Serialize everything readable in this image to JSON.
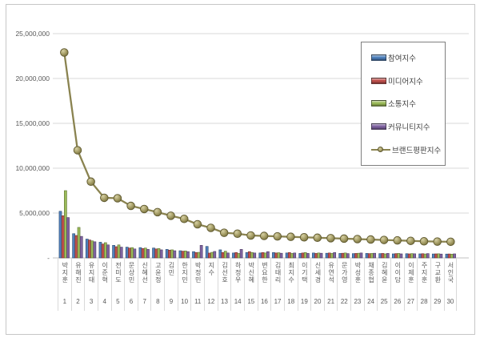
{
  "chart_data": {
    "type": "bar",
    "subtype": "grouped-bars-with-line-overlay",
    "title": "",
    "xlabel": "",
    "ylabel": "",
    "categories": [
      "박지훈",
      "유해진",
      "유지태",
      "이준혁",
      "전미도",
      "문상민",
      "신혜선",
      "고윤정",
      "김민",
      "한지민",
      "박정민",
      "지수",
      "김선호",
      "하정우",
      "박신혜",
      "변요한",
      "김태리",
      "최지수",
      "이기택",
      "신세경",
      "유연석",
      "문가영",
      "박성훈",
      "채종협",
      "김혜윤",
      "이이담",
      "이제훈",
      "주지훈",
      "구교환",
      "서인국"
    ],
    "ranks": [
      "1",
      "2",
      "3",
      "4",
      "5",
      "6",
      "7",
      "8",
      "9",
      "10",
      "11",
      "12",
      "13",
      "14",
      "15",
      "16",
      "17",
      "18",
      "19",
      "20",
      "21",
      "22",
      "23",
      "24",
      "25",
      "26",
      "27",
      "28",
      "29",
      "30"
    ],
    "series": [
      {
        "name": "참여지수",
        "type": "bar",
        "color": "#4f81bd",
        "edge": "#2c4a71",
        "values": [
          5200000,
          2700000,
          2100000,
          1750000,
          1400000,
          1200000,
          1150000,
          1100000,
          950000,
          800000,
          700000,
          1280000,
          900000,
          550000,
          600000,
          550000,
          600000,
          550000,
          500000,
          550000,
          520000,
          500000,
          480000,
          500000,
          480000,
          450000,
          470000,
          450000,
          440000,
          430000
        ]
      },
      {
        "name": "미디어지수",
        "type": "bar",
        "color": "#c0504d",
        "edge": "#73302e",
        "values": [
          4700000,
          2500000,
          2000000,
          1550000,
          1250000,
          1100000,
          1050000,
          1000000,
          870000,
          750000,
          600000,
          540000,
          600000,
          600000,
          700000,
          600000,
          550000,
          600000,
          550000,
          500000,
          550000,
          520000,
          500000,
          480000,
          500000,
          480000,
          450000,
          470000,
          450000,
          440000
        ]
      },
      {
        "name": "소통지수",
        "type": "bar",
        "color": "#9bbb59",
        "edge": "#5e7331",
        "values": [
          7500000,
          3400000,
          1900000,
          1700000,
          1450000,
          1150000,
          1100000,
          1050000,
          900000,
          780000,
          620000,
          620000,
          750000,
          500000,
          600000,
          550000,
          580000,
          500000,
          600000,
          550000,
          500000,
          550000,
          520000,
          500000,
          450000,
          500000,
          480000,
          440000,
          460000,
          420000
        ]
      },
      {
        "name": "커뮤니티지수",
        "type": "bar",
        "color": "#8064a2",
        "edge": "#4c3a63",
        "values": [
          4500000,
          2400000,
          1800000,
          1450000,
          1200000,
          1000000,
          950000,
          900000,
          800000,
          700000,
          1400000,
          720000,
          550000,
          950000,
          550000,
          700000,
          520000,
          550000,
          500000,
          520000,
          600000,
          480000,
          550000,
          520000,
          500000,
          450000,
          460000,
          480000,
          430000,
          450000
        ]
      },
      {
        "name": "브랜드평판지수",
        "type": "line",
        "color": "#8a8350",
        "marker_fill_light": "#d6d0a4",
        "marker_fill": "#a79f68",
        "marker_fill_dark": "#78713d",
        "marker_edge": "#5f5930",
        "values": [
          22900000,
          12000000,
          8500000,
          6700000,
          6650000,
          5800000,
          5450000,
          5100000,
          4700000,
          4350000,
          3750000,
          3350000,
          2800000,
          2700000,
          2500000,
          2450000,
          2400000,
          2350000,
          2300000,
          2250000,
          2200000,
          2150000,
          2100000,
          2050000,
          2000000,
          1950000,
          1900000,
          1850000,
          1820000,
          1800000
        ]
      }
    ],
    "y_axis": {
      "ticks": [
        {
          "label": "25,000,000",
          "value": 25000000
        },
        {
          "label": "20,000,000",
          "value": 20000000
        },
        {
          "label": "15,000,000",
          "value": 15000000
        },
        {
          "label": "10,000,000",
          "value": 10000000
        },
        {
          "label": "5,000,000",
          "value": 5000000
        }
      ],
      "zero_label": "-",
      "ylim": [
        0,
        25000000
      ],
      "grid": true,
      "grid_color": "#d9d9d9",
      "axis_line_color": "#c0c0c0",
      "label_color": "#595959"
    },
    "legend": {
      "position": "upper-right",
      "border_color": "#7f7f7f"
    }
  }
}
